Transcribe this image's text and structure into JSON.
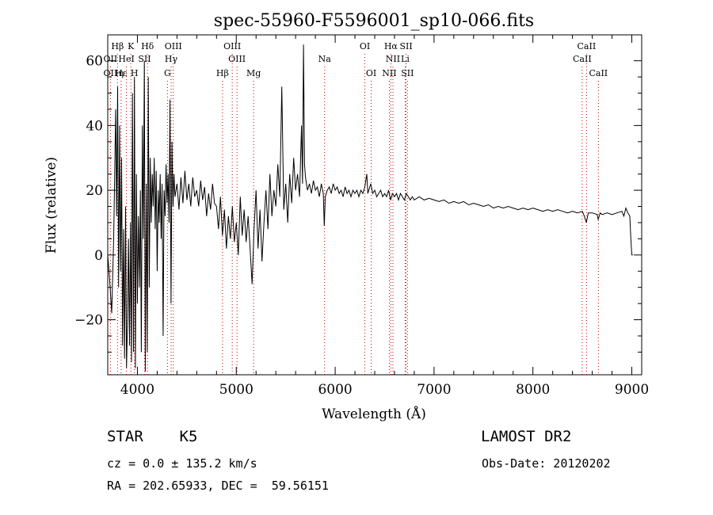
{
  "chart_data": {
    "type": "line",
    "title": "spec-55960-F5596001_sp10-066.fits",
    "xlabel": "Wavelength (Å)",
    "ylabel": "Flux (relative)",
    "xlim": [
      3700,
      9100
    ],
    "ylim": [
      -37,
      68
    ],
    "x_ticks": [
      4000,
      5000,
      6000,
      7000,
      8000,
      9000
    ],
    "y_ticks": [
      -20,
      0,
      20,
      40,
      60
    ],
    "grid": false,
    "series": [
      {
        "values_note": "",
        "points": [
          [
            3700,
            0
          ],
          [
            3720,
            -8
          ],
          [
            3740,
            -18
          ],
          [
            3760,
            5
          ],
          [
            3780,
            45
          ],
          [
            3790,
            12
          ],
          [
            3800,
            52
          ],
          [
            3810,
            -10
          ],
          [
            3820,
            40
          ],
          [
            3830,
            -5
          ],
          [
            3840,
            30
          ],
          [
            3850,
            -28
          ],
          [
            3860,
            8
          ],
          [
            3870,
            -32
          ],
          [
            3880,
            15
          ],
          [
            3890,
            -35
          ],
          [
            3900,
            -20
          ],
          [
            3910,
            5
          ],
          [
            3920,
            -28
          ],
          [
            3930,
            10
          ],
          [
            3940,
            -33
          ],
          [
            3950,
            50
          ],
          [
            3960,
            -30
          ],
          [
            3970,
            55
          ],
          [
            3980,
            -35
          ],
          [
            3990,
            25
          ],
          [
            4000,
            -15
          ],
          [
            4010,
            12
          ],
          [
            4020,
            -10
          ],
          [
            4030,
            20
          ],
          [
            4040,
            -30
          ],
          [
            4050,
            40
          ],
          [
            4060,
            5
          ],
          [
            4070,
            60
          ],
          [
            4080,
            -36
          ],
          [
            4090,
            22
          ],
          [
            4100,
            -30
          ],
          [
            4110,
            55
          ],
          [
            4120,
            -10
          ],
          [
            4130,
            30
          ],
          [
            4140,
            10
          ],
          [
            4150,
            25
          ],
          [
            4160,
            15
          ],
          [
            4170,
            30
          ],
          [
            4180,
            8
          ],
          [
            4190,
            26
          ],
          [
            4200,
            -5
          ],
          [
            4210,
            20
          ],
          [
            4220,
            10
          ],
          [
            4230,
            25
          ],
          [
            4240,
            5
          ],
          [
            4250,
            22
          ],
          [
            4260,
            -25
          ],
          [
            4270,
            20
          ],
          [
            4280,
            12
          ],
          [
            4290,
            28
          ],
          [
            4300,
            16
          ],
          [
            4310,
            25
          ],
          [
            4320,
            10
          ],
          [
            4330,
            48
          ],
          [
            4340,
            -15
          ],
          [
            4350,
            35
          ],
          [
            4360,
            15
          ],
          [
            4370,
            25
          ],
          [
            4380,
            18
          ],
          [
            4400,
            22
          ],
          [
            4420,
            14
          ],
          [
            4440,
            24
          ],
          [
            4460,
            16
          ],
          [
            4480,
            26
          ],
          [
            4500,
            17
          ],
          [
            4520,
            22
          ],
          [
            4540,
            15
          ],
          [
            4560,
            24
          ],
          [
            4580,
            18
          ],
          [
            4600,
            20
          ],
          [
            4620,
            15
          ],
          [
            4640,
            23
          ],
          [
            4660,
            17
          ],
          [
            4680,
            21
          ],
          [
            4700,
            12
          ],
          [
            4720,
            19
          ],
          [
            4740,
            14
          ],
          [
            4760,
            22
          ],
          [
            4780,
            16
          ],
          [
            4800,
            15
          ],
          [
            4820,
            8
          ],
          [
            4840,
            18
          ],
          [
            4860,
            6
          ],
          [
            4880,
            14
          ],
          [
            4900,
            2
          ],
          [
            4920,
            12
          ],
          [
            4940,
            5
          ],
          [
            4960,
            15
          ],
          [
            4980,
            4
          ],
          [
            5000,
            10
          ],
          [
            5020,
            0
          ],
          [
            5040,
            18
          ],
          [
            5060,
            6
          ],
          [
            5080,
            14
          ],
          [
            5100,
            4
          ],
          [
            5120,
            12
          ],
          [
            5140,
            2
          ],
          [
            5160,
            -9
          ],
          [
            5180,
            8
          ],
          [
            5200,
            20
          ],
          [
            5220,
            2
          ],
          [
            5240,
            14
          ],
          [
            5260,
            -2
          ],
          [
            5280,
            10
          ],
          [
            5300,
            20
          ],
          [
            5320,
            8
          ],
          [
            5340,
            25
          ],
          [
            5360,
            12
          ],
          [
            5380,
            20
          ],
          [
            5400,
            15
          ],
          [
            5420,
            28
          ],
          [
            5440,
            18
          ],
          [
            5460,
            52
          ],
          [
            5480,
            14
          ],
          [
            5500,
            22
          ],
          [
            5520,
            10
          ],
          [
            5540,
            25
          ],
          [
            5560,
            16
          ],
          [
            5580,
            30
          ],
          [
            5600,
            20
          ],
          [
            5620,
            25
          ],
          [
            5640,
            18
          ],
          [
            5660,
            40
          ],
          [
            5670,
            22
          ],
          [
            5680,
            65
          ],
          [
            5690,
            28
          ],
          [
            5700,
            24
          ],
          [
            5720,
            20
          ],
          [
            5740,
            22
          ],
          [
            5760,
            19
          ],
          [
            5780,
            23
          ],
          [
            5800,
            20
          ],
          [
            5820,
            21
          ],
          [
            5840,
            18
          ],
          [
            5860,
            22
          ],
          [
            5880,
            19
          ],
          [
            5890,
            9
          ],
          [
            5900,
            18
          ],
          [
            5920,
            20
          ],
          [
            5940,
            21
          ],
          [
            5960,
            19
          ],
          [
            5980,
            22
          ],
          [
            6000,
            20
          ],
          [
            6020,
            21
          ],
          [
            6040,
            19
          ],
          [
            6060,
            20
          ],
          [
            6080,
            18
          ],
          [
            6100,
            21
          ],
          [
            6120,
            19
          ],
          [
            6140,
            20
          ],
          [
            6160,
            18
          ],
          [
            6180,
            20
          ],
          [
            6200,
            19
          ],
          [
            6220,
            20
          ],
          [
            6240,
            18
          ],
          [
            6260,
            20
          ],
          [
            6280,
            19
          ],
          [
            6300,
            21
          ],
          [
            6320,
            25
          ],
          [
            6330,
            19
          ],
          [
            6340,
            20
          ],
          [
            6360,
            22
          ],
          [
            6380,
            19
          ],
          [
            6400,
            20
          ],
          [
            6420,
            18
          ],
          [
            6440,
            19
          ],
          [
            6460,
            20
          ],
          [
            6480,
            18
          ],
          [
            6500,
            19
          ],
          [
            6520,
            18
          ],
          [
            6540,
            20
          ],
          [
            6560,
            17
          ],
          [
            6580,
            19
          ],
          [
            6600,
            18
          ],
          [
            6620,
            19
          ],
          [
            6640,
            17
          ],
          [
            6660,
            19
          ],
          [
            6680,
            18
          ],
          [
            6700,
            17
          ],
          [
            6720,
            19
          ],
          [
            6740,
            18
          ],
          [
            6760,
            17
          ],
          [
            6780,
            18
          ],
          [
            6800,
            17
          ],
          [
            6850,
            18
          ],
          [
            6900,
            17
          ],
          [
            6950,
            17.5
          ],
          [
            7000,
            17
          ],
          [
            7050,
            16.5
          ],
          [
            7100,
            17
          ],
          [
            7150,
            16
          ],
          [
            7200,
            16.5
          ],
          [
            7250,
            16
          ],
          [
            7300,
            16.5
          ],
          [
            7350,
            15.5
          ],
          [
            7400,
            16
          ],
          [
            7450,
            15.5
          ],
          [
            7500,
            15
          ],
          [
            7550,
            15.5
          ],
          [
            7600,
            14.5
          ],
          [
            7650,
            15
          ],
          [
            7700,
            14.5
          ],
          [
            7750,
            15
          ],
          [
            7800,
            14.5
          ],
          [
            7850,
            14
          ],
          [
            7900,
            14.5
          ],
          [
            7950,
            14
          ],
          [
            8000,
            14.5
          ],
          [
            8050,
            14
          ],
          [
            8100,
            13.5
          ],
          [
            8150,
            14
          ],
          [
            8200,
            13.5
          ],
          [
            8250,
            14
          ],
          [
            8300,
            13.5
          ],
          [
            8350,
            13
          ],
          [
            8400,
            13.5
          ],
          [
            8450,
            13
          ],
          [
            8500,
            13.5
          ],
          [
            8520,
            12
          ],
          [
            8540,
            10
          ],
          [
            8560,
            13
          ],
          [
            8600,
            13
          ],
          [
            8650,
            12.5
          ],
          [
            8660,
            11
          ],
          [
            8680,
            13
          ],
          [
            8700,
            12.5
          ],
          [
            8750,
            13
          ],
          [
            8800,
            12.5
          ],
          [
            8850,
            13
          ],
          [
            8900,
            13.5
          ],
          [
            8920,
            12
          ],
          [
            8940,
            14.5
          ],
          [
            8960,
            13
          ],
          [
            8980,
            12
          ],
          [
            8990,
            5
          ],
          [
            9000,
            0
          ],
          [
            9010,
            0
          ]
        ]
      }
    ],
    "line_markers": [
      {
        "label": "Hβ",
        "x": 3799,
        "row": 1
      },
      {
        "label": "K",
        "x": 3934,
        "row": 1
      },
      {
        "label": "Hδ",
        "x": 4102,
        "row": 1
      },
      {
        "label": "OIII",
        "x": 4363,
        "row": 1
      },
      {
        "label": "OIII",
        "x": 4959,
        "row": 1
      },
      {
        "label": "OI",
        "x": 6300,
        "row": 1
      },
      {
        "label": "Hα",
        "x": 6563,
        "row": 1
      },
      {
        "label": "SII",
        "x": 6717,
        "row": 1
      },
      {
        "label": "CaII",
        "x": 8542,
        "row": 1
      },
      {
        "label": "OII",
        "x": 3727,
        "row": 2
      },
      {
        "label": "HeI",
        "x": 3889,
        "row": 2
      },
      {
        "label": "SII",
        "x": 4072,
        "row": 2
      },
      {
        "label": "Hγ",
        "x": 4341,
        "row": 2
      },
      {
        "label": "OIII",
        "x": 5007,
        "row": 2
      },
      {
        "label": "Na",
        "x": 5893,
        "row": 2
      },
      {
        "label": "NII",
        "x": 6584,
        "row": 2
      },
      {
        "label": "Li",
        "x": 6708,
        "row": 2
      },
      {
        "label": "CaII",
        "x": 8498,
        "row": 2
      },
      {
        "label": "OII",
        "x": 3727,
        "row": 3
      },
      {
        "label": "Hε",
        "x": 3835,
        "row": 3
      },
      {
        "label": "η",
        "x": 3835,
        "row": 3
      },
      {
        "label": "H",
        "x": 3970,
        "row": 3
      },
      {
        "label": "G",
        "x": 4304,
        "row": 3
      },
      {
        "label": "Hβ",
        "x": 4861,
        "row": 3
      },
      {
        "label": "Mg",
        "x": 5175,
        "row": 3
      },
      {
        "label": "OI",
        "x": 6364,
        "row": 3
      },
      {
        "label": "NII",
        "x": 6548,
        "row": 3
      },
      {
        "label": "SII",
        "x": 6731,
        "row": 3
      },
      {
        "label": "CaII",
        "x": 8662,
        "row": 3
      }
    ]
  },
  "info": {
    "object_class": "STAR    K5",
    "survey": "LAMOST DR2",
    "redshift_line": "cz = 0.0 ± 135.2 km/s",
    "obs_date": "Obs-Date: 20120202",
    "coords": "RA = 202.65933, DEC =  59.56151"
  }
}
